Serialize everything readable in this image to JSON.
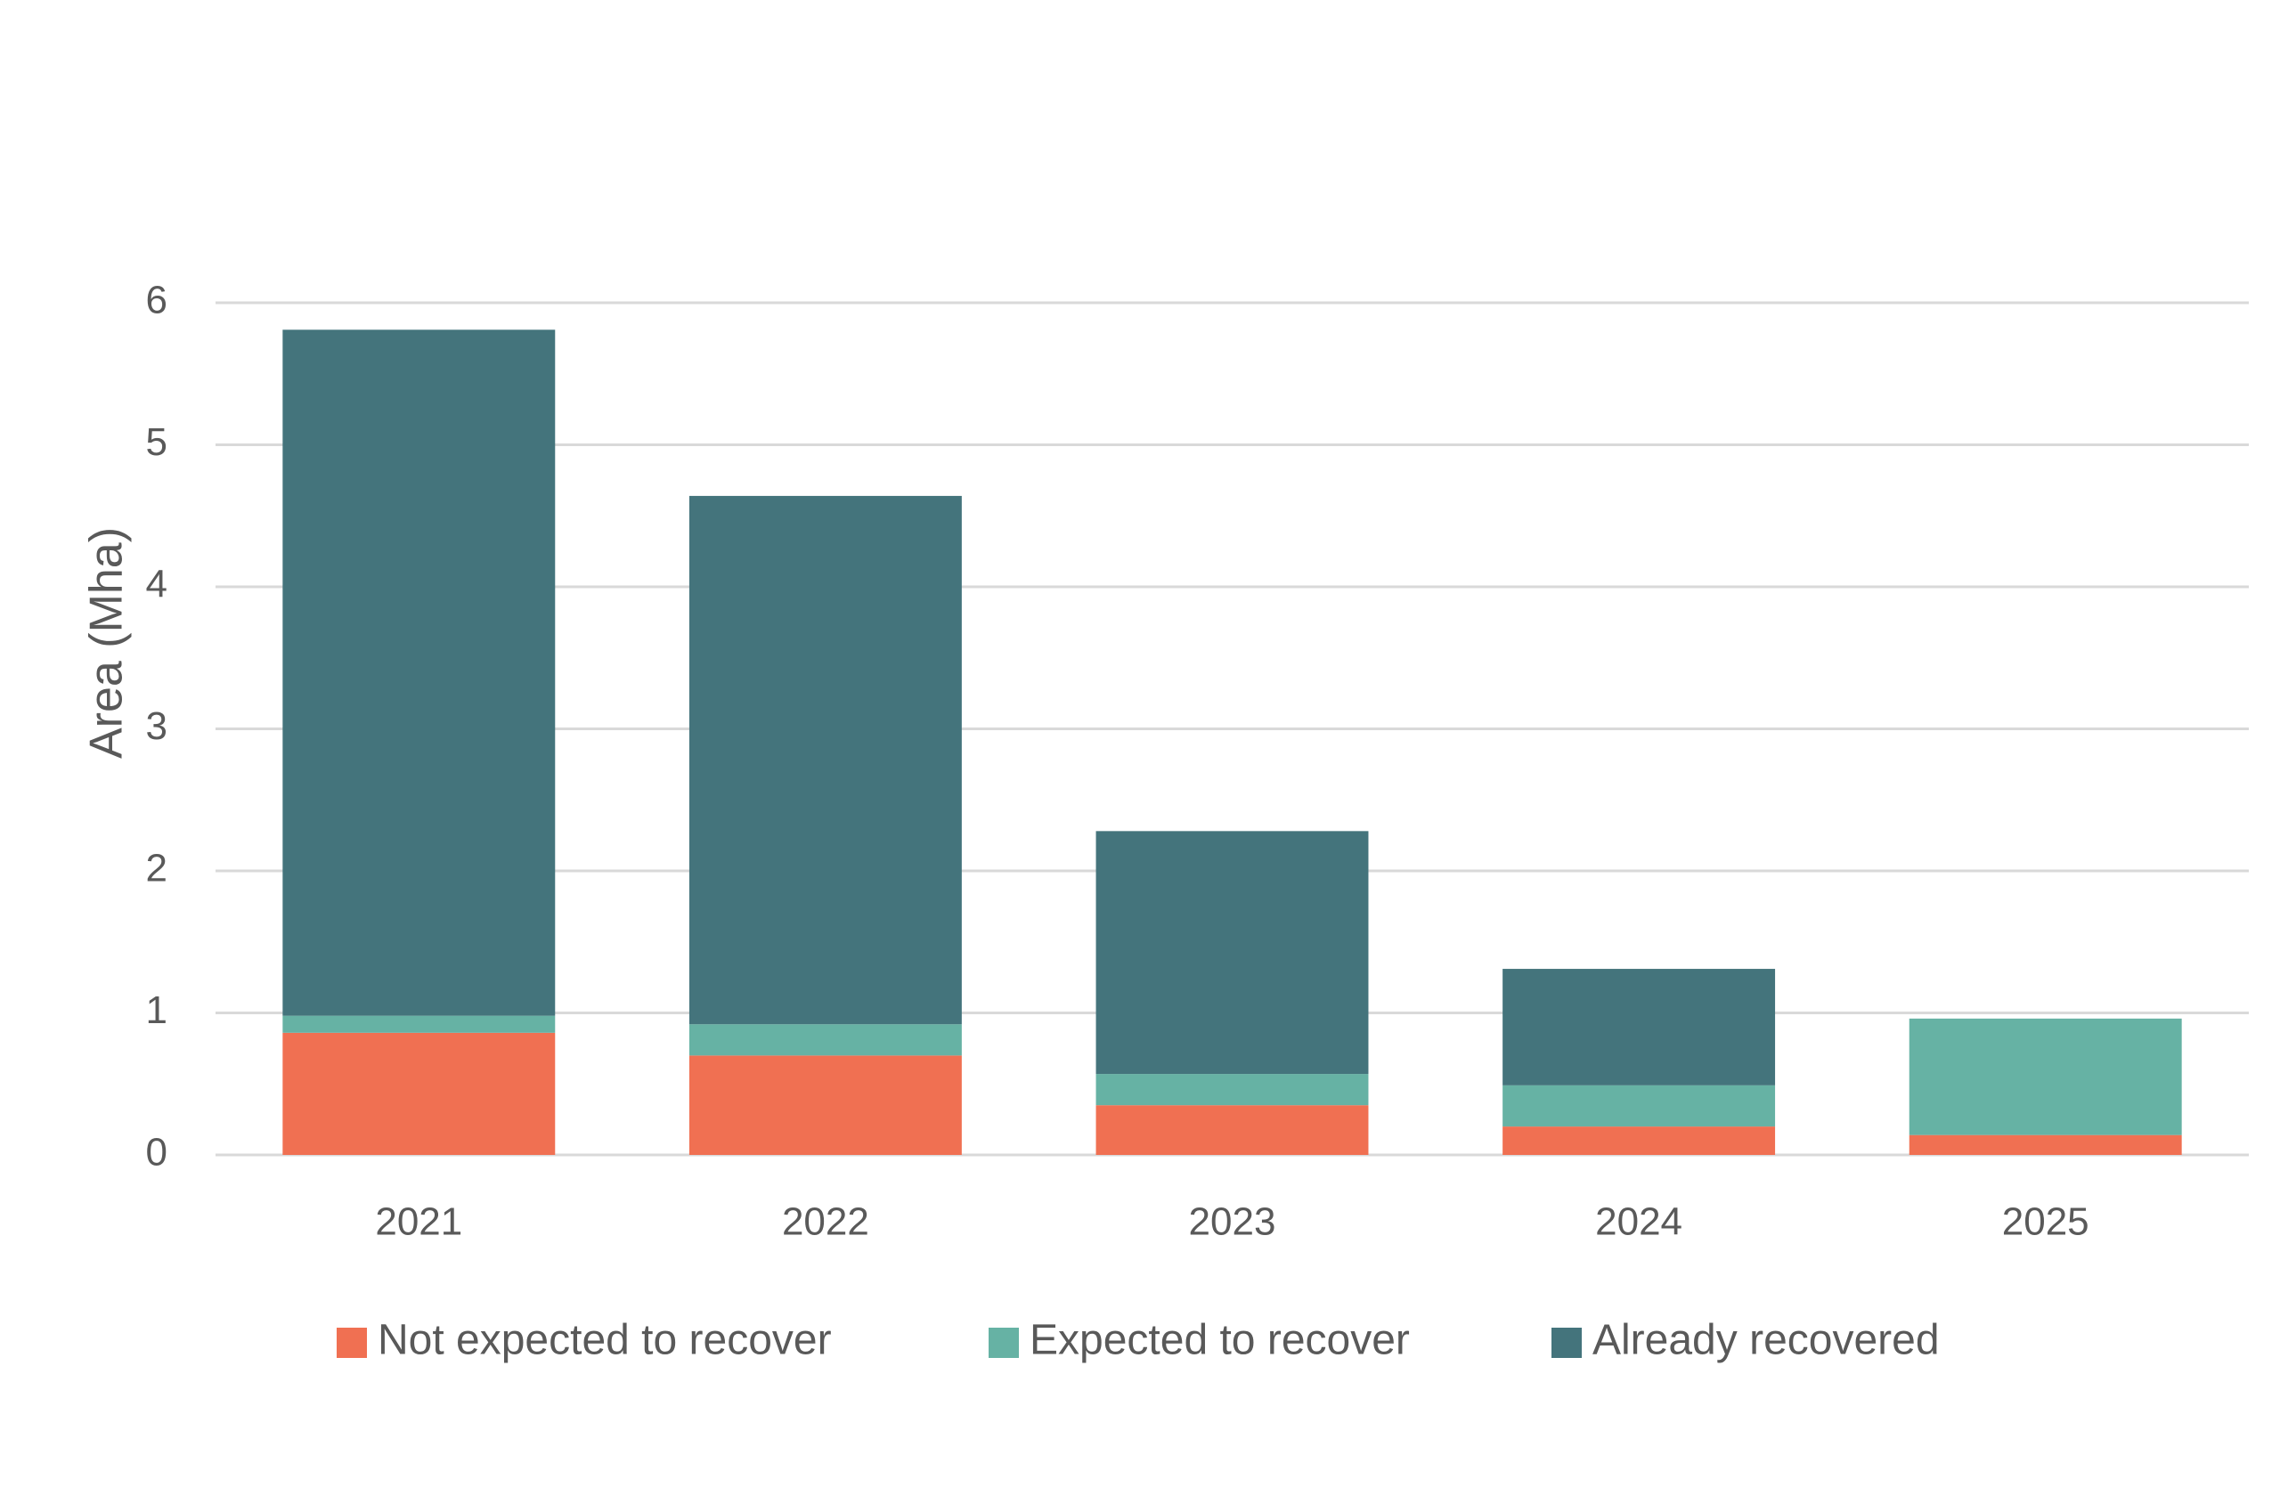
{
  "chart_data": {
    "type": "bar",
    "stacked": true,
    "title": "",
    "xlabel": "",
    "ylabel": "Area (Mha)",
    "ylim": [
      0,
      6
    ],
    "yticks": [
      0,
      1,
      2,
      3,
      4,
      5,
      6
    ],
    "grid": true,
    "legend_position": "bottom",
    "categories": [
      "2021",
      "2022",
      "2023",
      "2024",
      "2025"
    ],
    "series": [
      {
        "name": "Not expected to recover",
        "color": "#f07052",
        "values": [
          0.86,
          0.7,
          0.35,
          0.2,
          0.14
        ]
      },
      {
        "name": "Expected to recover",
        "color": "#66b2a4",
        "values": [
          0.12,
          0.22,
          0.22,
          0.29,
          0.82
        ]
      },
      {
        "name": "Already recovered",
        "color": "#44747c",
        "values": [
          4.83,
          3.72,
          1.71,
          0.82,
          0.0
        ]
      }
    ]
  }
}
